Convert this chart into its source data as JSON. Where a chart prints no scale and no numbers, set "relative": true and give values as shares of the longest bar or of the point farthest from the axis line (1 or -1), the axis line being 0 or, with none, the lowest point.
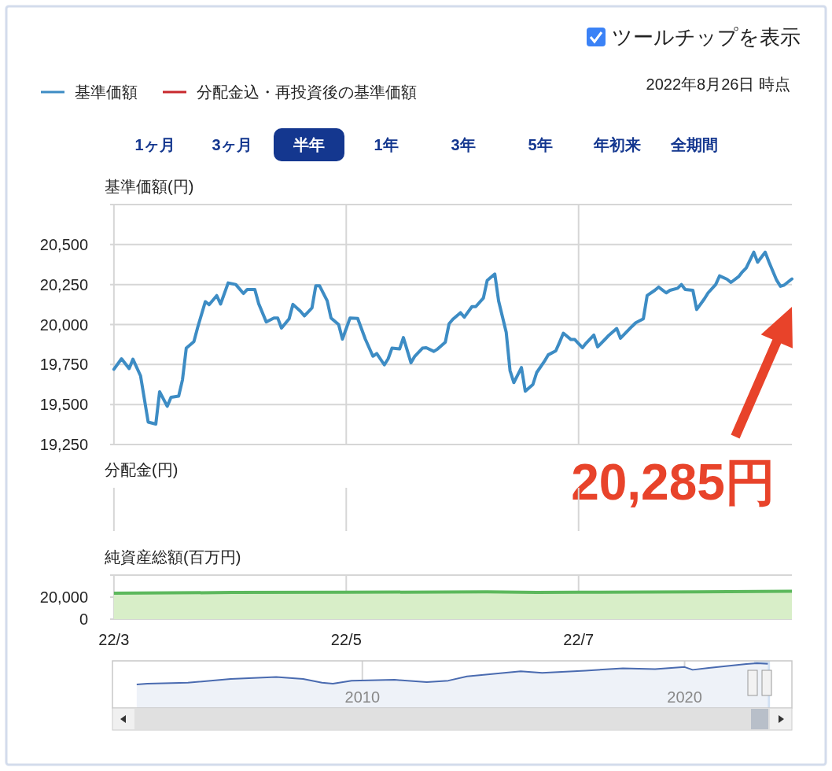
{
  "chart_data": [
    {
      "type": "line",
      "ylabel": "基準価額(円)",
      "legend": "top left",
      "grid": true,
      "tick_labels": "y",
      "xlim": [
        "2022-02-28",
        "2022-08-26"
      ],
      "xticks": [
        {
          "value": "2022-03-01",
          "label": null
        },
        {
          "value": "2022-05-01",
          "label": null
        },
        {
          "value": "2022-07-01",
          "label": null
        }
      ],
      "ylim": [
        19250,
        20750
      ],
      "yticks": [
        {
          "value": 19500,
          "label": "19,500"
        },
        {
          "value": 19750,
          "label": "19,750"
        },
        {
          "value": 20000,
          "label": "20,000"
        },
        {
          "value": 20250,
          "label": "20,250"
        },
        {
          "value": 20500,
          "label": "20,500"
        },
        {
          "value": 20750,
          "label": null
        },
        {
          "value": 19250,
          "label": "19,250"
        }
      ],
      "series": [
        {
          "name": "基準価額",
          "color": "#3d8cc4",
          "x": [
            "2022-03-01",
            "2022-03-03",
            "2022-03-05",
            "2022-03-06",
            "2022-03-08",
            "2022-03-10",
            "2022-03-12",
            "2022-03-13",
            "2022-03-15",
            "2022-03-16",
            "2022-03-18",
            "2022-03-19",
            "2022-03-20",
            "2022-03-22",
            "2022-03-23",
            "2022-03-25",
            "2022-03-26",
            "2022-03-28",
            "2022-03-29",
            "2022-03-31",
            "2022-04-02",
            "2022-04-04",
            "2022-04-05",
            "2022-04-07",
            "2022-04-08",
            "2022-04-10",
            "2022-04-12",
            "2022-04-13",
            "2022-04-14",
            "2022-04-16",
            "2022-04-17",
            "2022-04-19",
            "2022-04-20",
            "2022-04-22",
            "2022-04-23",
            "2022-04-24",
            "2022-04-26",
            "2022-04-27",
            "2022-04-29",
            "2022-04-30",
            "2022-05-02",
            "2022-05-04",
            "2022-05-06",
            "2022-05-08",
            "2022-05-09",
            "2022-05-11",
            "2022-05-12",
            "2022-05-13",
            "2022-05-15",
            "2022-05-16",
            "2022-05-18",
            "2022-05-19",
            "2022-05-21",
            "2022-05-22",
            "2022-05-24",
            "2022-05-25",
            "2022-05-27",
            "2022-05-28",
            "2022-05-29",
            "2022-05-31",
            "2022-06-01",
            "2022-06-03",
            "2022-06-04",
            "2022-06-06",
            "2022-06-07",
            "2022-06-09",
            "2022-06-10",
            "2022-06-12",
            "2022-06-13",
            "2022-06-14",
            "2022-06-16",
            "2022-06-17",
            "2022-06-19",
            "2022-06-20",
            "2022-06-22",
            "2022-06-23",
            "2022-06-25",
            "2022-06-26",
            "2022-06-27",
            "2022-06-29",
            "2022-06-30",
            "2022-07-02",
            "2022-07-03",
            "2022-07-05",
            "2022-07-06",
            "2022-07-08",
            "2022-07-09",
            "2022-07-11",
            "2022-07-12",
            "2022-07-13",
            "2022-07-15",
            "2022-07-16",
            "2022-07-18",
            "2022-07-19",
            "2022-07-21",
            "2022-07-22",
            "2022-07-24",
            "2022-07-25",
            "2022-07-27",
            "2022-07-28",
            "2022-07-29",
            "2022-07-31",
            "2022-08-01",
            "2022-08-03",
            "2022-08-04",
            "2022-08-06",
            "2022-08-07",
            "2022-08-09",
            "2022-08-10",
            "2022-08-12",
            "2022-08-13",
            "2022-08-14",
            "2022-08-16",
            "2022-08-17",
            "2022-08-19",
            "2022-08-20",
            "2022-08-22",
            "2022-08-23",
            "2022-08-24",
            "2022-08-26"
          ],
          "values": [
            19720,
            19786,
            19725,
            19783,
            19679,
            19390,
            19378,
            19580,
            19489,
            19545,
            19552,
            19654,
            19852,
            19893,
            19983,
            20143,
            20124,
            20181,
            20128,
            20260,
            20250,
            20194,
            20219,
            20219,
            20131,
            20016,
            20041,
            20041,
            19978,
            20036,
            20126,
            20082,
            20054,
            20104,
            20242,
            20242,
            20148,
            20041,
            20000,
            19909,
            20041,
            20038,
            19909,
            19802,
            19819,
            19748,
            19786,
            19852,
            19847,
            19918,
            19761,
            19802,
            19852,
            19855,
            19832,
            19847,
            19889,
            20005,
            20033,
            20074,
            20046,
            20112,
            20112,
            20165,
            20275,
            20316,
            20148,
            19951,
            19712,
            19637,
            19731,
            19583,
            19625,
            19700,
            19769,
            19810,
            19835,
            19889,
            19946,
            19906,
            19906,
            19855,
            19884,
            19934,
            19860,
            19909,
            19934,
            19975,
            19914,
            19939,
            19988,
            20011,
            20036,
            20181,
            20214,
            20234,
            20198,
            20214,
            20227,
            20250,
            20219,
            20214,
            20094,
            20160,
            20198,
            20250,
            20304,
            20283,
            20263,
            20299,
            20329,
            20354,
            20452,
            20390,
            20452,
            20390,
            20277,
            20239,
            20247,
            20285
          ]
        },
        {
          "name": "分配金込・再投資後の基準価額",
          "color": "#c8282d"
        }
      ],
      "annotations": [
        "ツールチップを表示",
        "2022年8月26日 時点",
        "1ヶ月",
        "3ヶ月",
        "半年",
        "1年",
        "3年",
        "5年",
        "年初来",
        "全期間",
        "20,285円"
      ]
    },
    {
      "type": "other",
      "annotations": [
        "分配金(円)"
      ]
    },
    {
      "type": "area",
      "ylabel": "純資産総額(百万円)",
      "grid": true,
      "xlim": [
        "2022-02-28",
        "2022-08-26"
      ],
      "xticks": [
        {
          "value": "2022-03-01",
          "label": "22/3"
        },
        {
          "value": "2022-05-01",
          "label": "22/5"
        },
        {
          "value": "2022-07-01",
          "label": "22/7"
        }
      ],
      "ylim": [
        0,
        40000
      ],
      "yticks": [
        0,
        {
          "value": 20000,
          "label": "20,000"
        },
        {
          "value": 40000,
          "label": null
        }
      ],
      "series": [
        {
          "color": "#5cb85c",
          "x": [
            "2022-03-01",
            "2022-04-01",
            "2022-05-01",
            "2022-06-07",
            "2022-06-20",
            "2022-07-01",
            "2022-08-01",
            "2022-08-26"
          ],
          "values": [
            23500,
            24200,
            24400,
            24800,
            24300,
            24400,
            24800,
            25300
          ]
        }
      ]
    },
    {
      "type": "area",
      "relative": true,
      "grid": "x",
      "xlim": [
        "2002-04",
        "2023-05"
      ],
      "xticks": [
        {
          "value": "2010",
          "label": "2010"
        },
        {
          "value": "2020",
          "label": "2020"
        }
      ],
      "bands": [
        {
          "axis": "x",
          "from": "2022-02-26",
          "to": "2022-08-26",
          "color": "#c6d8ef"
        }
      ],
      "series": [
        {
          "color": "#4a6bb0",
          "x": [
            "2003-01",
            "2003-05",
            "2004-08",
            "2005-12",
            "2007-05",
            "2008-03",
            "2008-10",
            "2009-02",
            "2009-09",
            "2011-01",
            "2012-01",
            "2012-09",
            "2013-04",
            "2014-12",
            "2015-08",
            "2016-12",
            "2018-02",
            "2019-02",
            "2020-01",
            "2020-04",
            "2020-10",
            "2021-12",
            "2022-04",
            "2022-08"
          ],
          "values": [
            0,
            0.04,
            0.08,
            0.26,
            0.35,
            0.26,
            0.08,
            0.04,
            0.18,
            0.22,
            0.11,
            0.18,
            0.38,
            0.62,
            0.55,
            0.65,
            0.76,
            0.72,
            0.82,
            0.69,
            0.78,
            0.96,
            1,
            0.97
          ]
        }
      ]
    }
  ]
}
